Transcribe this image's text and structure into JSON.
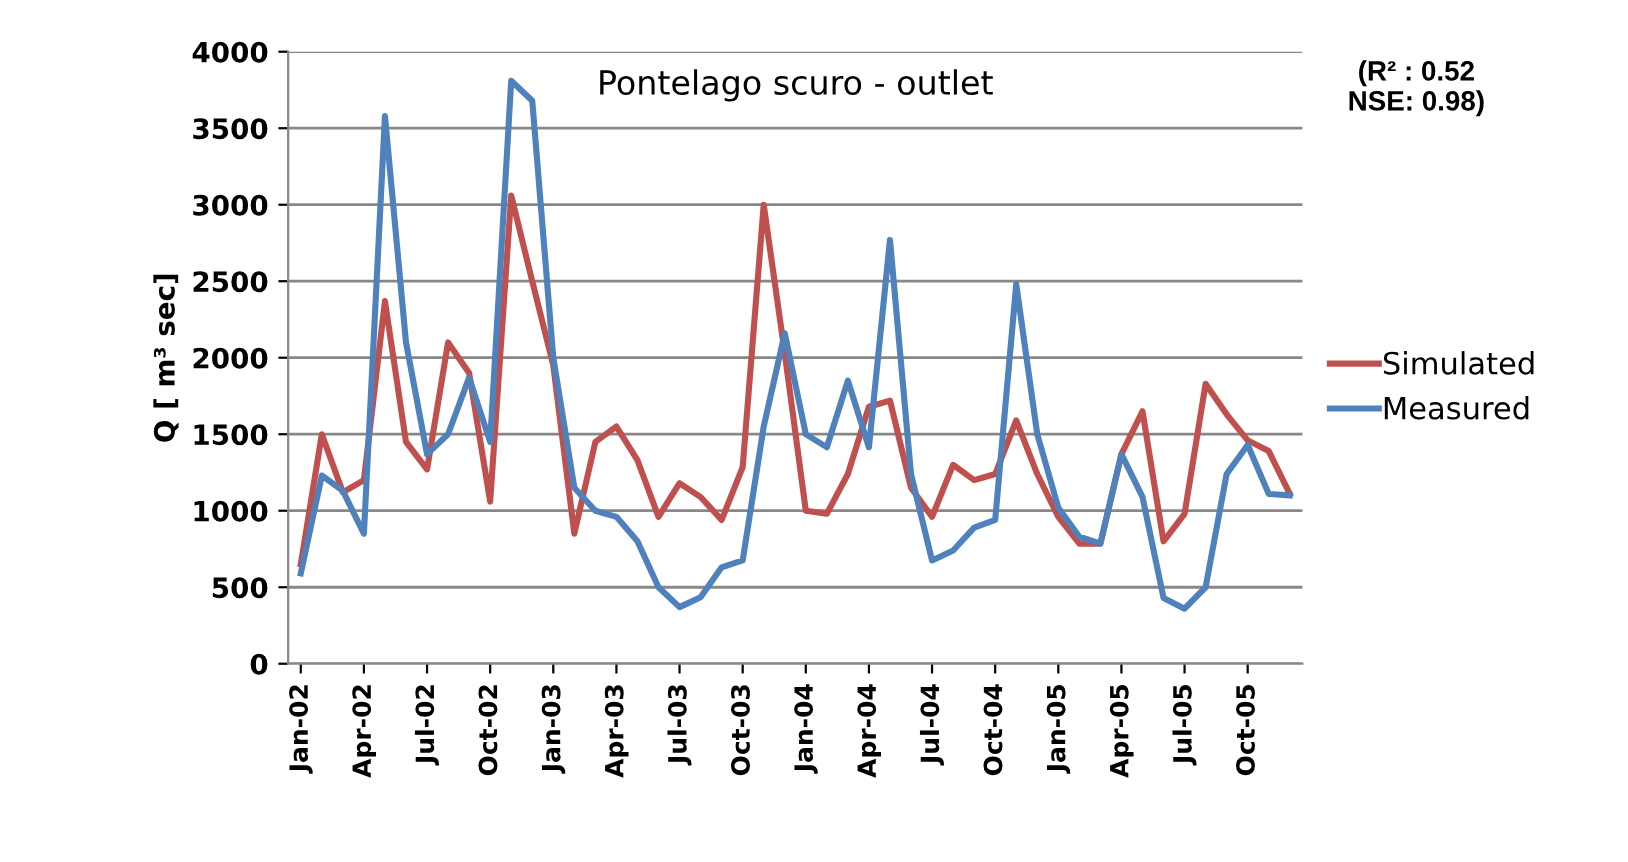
{
  "chart_data": {
    "type": "line",
    "title": "Pontelago scuro - outlet",
    "ylabel": "Q [ m³ sec]",
    "categories": [
      "Jan-02",
      null,
      null,
      "Apr-02",
      null,
      null,
      "Jul-02",
      null,
      null,
      "Oct-02",
      null,
      null,
      "Jan-03",
      null,
      null,
      "Apr-03",
      null,
      null,
      "Jul-03",
      null,
      null,
      "Oct-03",
      null,
      null,
      "Jan-04",
      null,
      null,
      "Apr-04",
      null,
      null,
      "Jul-04",
      null,
      null,
      "Oct-04",
      null,
      null,
      "Jan-05",
      null,
      null,
      "Apr-05",
      null,
      null,
      "Jul-05",
      null,
      null,
      "Oct-05",
      null,
      null
    ],
    "series": [
      {
        "name": "Simulated",
        "color": "#c0504d",
        "values": [
          650,
          1500,
          1120,
          1200,
          2370,
          1450,
          1270,
          2100,
          1900,
          1060,
          3060,
          2500,
          1950,
          850,
          1450,
          1550,
          1330,
          960,
          1180,
          1090,
          940,
          1285,
          3000,
          2030,
          1000,
          980,
          1240,
          1680,
          1720,
          1150,
          960,
          1300,
          1200,
          1240,
          1590,
          1240,
          960,
          785,
          785,
          1370,
          1650,
          800,
          980,
          1830,
          1630,
          1460,
          1390,
          1110
        ]
      },
      {
        "name": "Measured",
        "color": "#4f81bd",
        "values": [
          590,
          1230,
          1130,
          850,
          3580,
          2100,
          1370,
          1500,
          1870,
          1450,
          3810,
          3680,
          2000,
          1150,
          1000,
          960,
          800,
          500,
          370,
          435,
          630,
          675,
          1550,
          2160,
          1500,
          1415,
          1850,
          1415,
          2770,
          1240,
          675,
          740,
          890,
          940,
          2480,
          1500,
          1020,
          830,
          785,
          1370,
          1090,
          430,
          360,
          500,
          1240,
          1430,
          1110,
          1100
        ]
      }
    ],
    "ylim": [
      0,
      4000
    ],
    "yticks": [
      0,
      500,
      1000,
      1500,
      2000,
      2500,
      3000,
      3500,
      4000
    ],
    "grid": "y",
    "legend": "right",
    "marker": "none",
    "line_style": "solid",
    "annotations": [
      "(R² : 0.52\nNSE: 0.98)"
    ]
  }
}
